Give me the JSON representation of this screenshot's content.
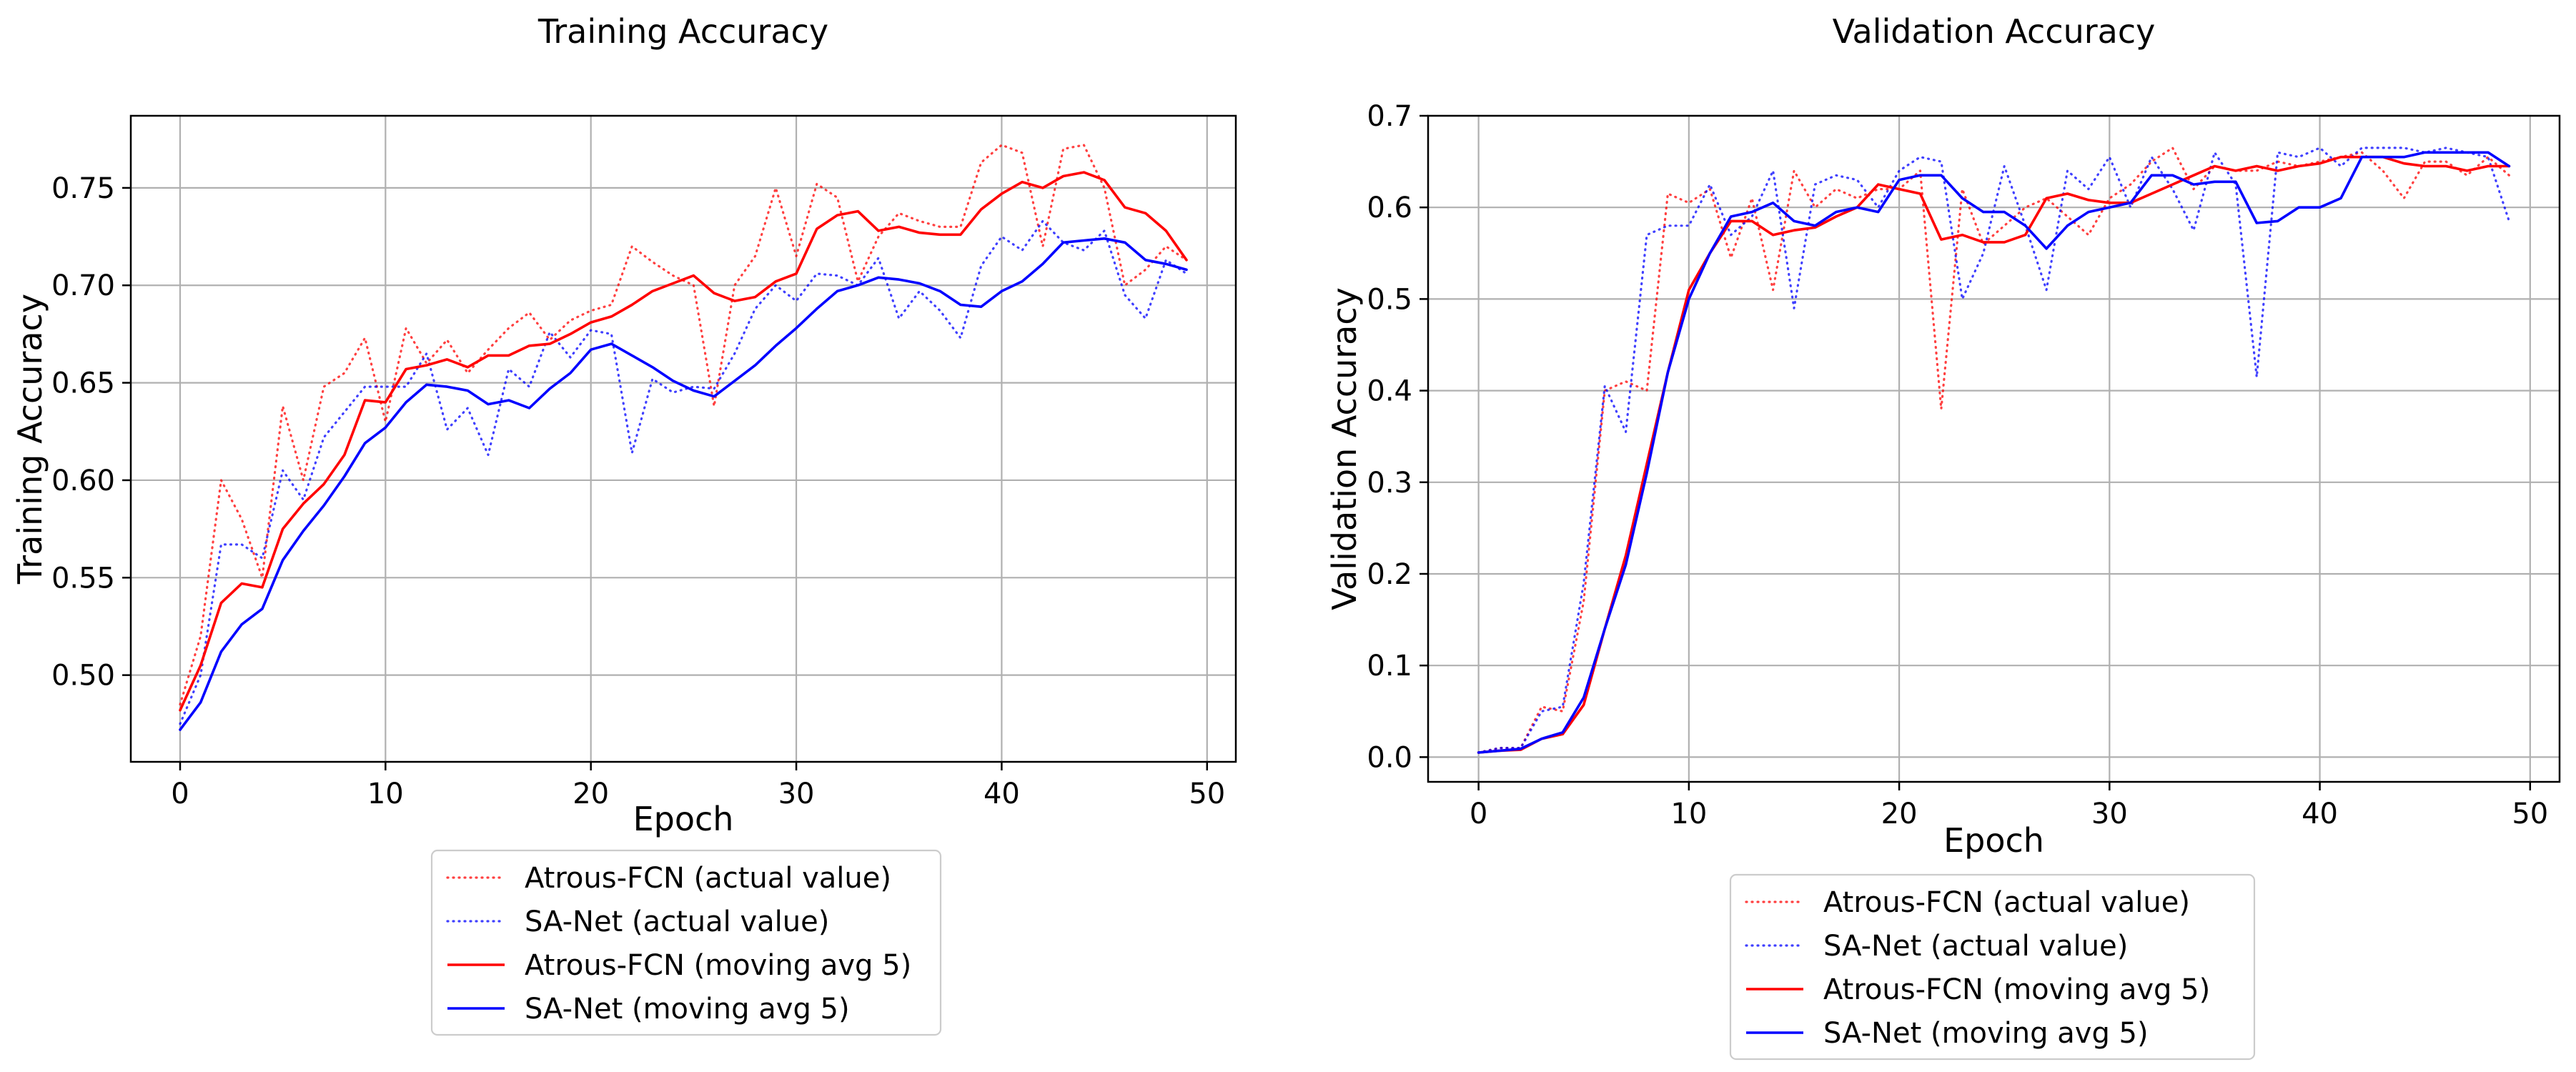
{
  "chart_data": [
    {
      "type": "line",
      "title": "Training Accuracy",
      "xlabel": "Epoch",
      "ylabel": "Training Accuracy",
      "xlim": [
        -2.4,
        51.4
      ],
      "ylim": [
        0.4555,
        0.787
      ],
      "xticks": [
        0,
        10,
        20,
        30,
        40,
        50
      ],
      "xtick_labels": [
        "0",
        "10",
        "20",
        "30",
        "40",
        "50"
      ],
      "yticks": [
        0.5,
        0.55,
        0.6,
        0.65,
        0.7,
        0.75
      ],
      "ytick_labels": [
        "0.50",
        "0.55",
        "0.60",
        "0.65",
        "0.70",
        "0.75"
      ],
      "grid": true,
      "legend_position": "below",
      "colors": {
        "atrous": "#ff0000",
        "sanet": "#0000ff"
      },
      "x": [
        0,
        1,
        2,
        3,
        4,
        5,
        6,
        7,
        8,
        9,
        10,
        11,
        12,
        13,
        14,
        15,
        16,
        17,
        18,
        19,
        20,
        21,
        22,
        23,
        24,
        25,
        26,
        27,
        28,
        29,
        30,
        31,
        32,
        33,
        34,
        35,
        36,
        37,
        38,
        39,
        40,
        41,
        42,
        43,
        44,
        45,
        46,
        47,
        48,
        49
      ],
      "series": [
        {
          "name": "Atrous-FCN (actual value)",
          "style": "dotted",
          "color": "#ff0000",
          "values": [
            0.485,
            0.52,
            0.6,
            0.58,
            0.55,
            0.638,
            0.6,
            0.648,
            0.655,
            0.673,
            0.63,
            0.678,
            0.66,
            0.672,
            0.655,
            0.667,
            0.678,
            0.686,
            0.672,
            0.682,
            0.687,
            0.69,
            0.72,
            0.712,
            0.705,
            0.7,
            0.638,
            0.7,
            0.715,
            0.75,
            0.715,
            0.752,
            0.745,
            0.702,
            0.725,
            0.737,
            0.733,
            0.73,
            0.73,
            0.763,
            0.772,
            0.768,
            0.72,
            0.77,
            0.772,
            0.75,
            0.7,
            0.708,
            0.72,
            0.713
          ]
        },
        {
          "name": "SA-Net (actual value)",
          "style": "dotted",
          "color": "#0000ff",
          "values": [
            0.475,
            0.5,
            0.567,
            0.567,
            0.56,
            0.605,
            0.59,
            0.622,
            0.635,
            0.648,
            0.648,
            0.648,
            0.665,
            0.626,
            0.637,
            0.613,
            0.657,
            0.648,
            0.676,
            0.663,
            0.677,
            0.675,
            0.614,
            0.652,
            0.645,
            0.648,
            0.647,
            0.665,
            0.688,
            0.7,
            0.692,
            0.706,
            0.705,
            0.7,
            0.714,
            0.683,
            0.697,
            0.687,
            0.673,
            0.71,
            0.725,
            0.718,
            0.733,
            0.722,
            0.718,
            0.728,
            0.695,
            0.683,
            0.713,
            0.706
          ]
        },
        {
          "name": "Atrous-FCN (moving avg 5)",
          "style": "solid",
          "color": "#ff0000",
          "values": [
            0.482,
            0.505,
            0.537,
            0.547,
            0.545,
            0.575,
            0.588,
            0.598,
            0.613,
            0.641,
            0.64,
            0.657,
            0.659,
            0.662,
            0.658,
            0.664,
            0.664,
            0.669,
            0.67,
            0.675,
            0.681,
            0.684,
            0.69,
            0.697,
            0.701,
            0.705,
            0.696,
            0.692,
            0.694,
            0.702,
            0.706,
            0.729,
            0.736,
            0.738,
            0.728,
            0.73,
            0.727,
            0.726,
            0.726,
            0.739,
            0.747,
            0.753,
            0.75,
            0.756,
            0.758,
            0.754,
            0.74,
            0.737,
            0.728,
            0.713
          ]
        },
        {
          "name": "SA-Net (moving avg 5)",
          "style": "solid",
          "color": "#0000ff",
          "values": [
            0.472,
            0.486,
            0.512,
            0.526,
            0.534,
            0.559,
            0.574,
            0.587,
            0.602,
            0.619,
            0.627,
            0.64,
            0.649,
            0.648,
            0.646,
            0.639,
            0.641,
            0.637,
            0.647,
            0.655,
            0.667,
            0.67,
            0.664,
            0.658,
            0.651,
            0.646,
            0.643,
            0.651,
            0.659,
            0.669,
            0.678,
            0.688,
            0.697,
            0.7,
            0.704,
            0.703,
            0.701,
            0.697,
            0.69,
            0.689,
            0.697,
            0.702,
            0.711,
            0.722,
            0.723,
            0.724,
            0.722,
            0.713,
            0.711,
            0.708
          ]
        }
      ]
    },
    {
      "type": "line",
      "title": "Validation Accuracy",
      "xlabel": "Epoch",
      "ylabel": "Validation Accuracy",
      "xlim": [
        -2.4,
        51.4
      ],
      "ylim": [
        -0.027,
        0.7
      ],
      "xticks": [
        0,
        10,
        20,
        30,
        40,
        50
      ],
      "xtick_labels": [
        "0",
        "10",
        "20",
        "30",
        "40",
        "50"
      ],
      "yticks": [
        0.0,
        0.1,
        0.2,
        0.3,
        0.4,
        0.5,
        0.6,
        0.7
      ],
      "ytick_labels": [
        "0.0",
        "0.1",
        "0.2",
        "0.3",
        "0.4",
        "0.5",
        "0.6",
        "0.7"
      ],
      "grid": true,
      "legend_position": "below",
      "colors": {
        "atrous": "#ff0000",
        "sanet": "#0000ff"
      },
      "x": [
        0,
        1,
        2,
        3,
        4,
        5,
        6,
        7,
        8,
        9,
        10,
        11,
        12,
        13,
        14,
        15,
        16,
        17,
        18,
        19,
        20,
        21,
        22,
        23,
        24,
        25,
        26,
        27,
        28,
        29,
        30,
        31,
        32,
        33,
        34,
        35,
        36,
        37,
        38,
        39,
        40,
        41,
        42,
        43,
        44,
        45,
        46,
        47,
        48,
        49
      ],
      "series": [
        {
          "name": "Atrous-FCN (actual value)",
          "style": "dotted",
          "color": "#ff0000",
          "values": [
            0.005,
            0.01,
            0.01,
            0.055,
            0.05,
            0.17,
            0.4,
            0.41,
            0.4,
            0.615,
            0.605,
            0.62,
            0.545,
            0.61,
            0.51,
            0.64,
            0.6,
            0.62,
            0.61,
            0.62,
            0.62,
            0.64,
            0.38,
            0.62,
            0.56,
            0.58,
            0.6,
            0.61,
            0.59,
            0.57,
            0.61,
            0.625,
            0.65,
            0.665,
            0.62,
            0.645,
            0.64,
            0.64,
            0.65,
            0.645,
            0.65,
            0.655,
            0.66,
            0.64,
            0.61,
            0.65,
            0.65,
            0.635,
            0.655,
            0.635
          ]
        },
        {
          "name": "SA-Net (actual value)",
          "style": "dotted",
          "color": "#0000ff",
          "values": [
            0.005,
            0.01,
            0.01,
            0.05,
            0.055,
            0.19,
            0.405,
            0.355,
            0.57,
            0.58,
            0.58,
            0.625,
            0.57,
            0.59,
            0.64,
            0.49,
            0.625,
            0.635,
            0.63,
            0.6,
            0.64,
            0.655,
            0.65,
            0.5,
            0.55,
            0.645,
            0.58,
            0.51,
            0.64,
            0.62,
            0.655,
            0.6,
            0.655,
            0.62,
            0.575,
            0.66,
            0.625,
            0.415,
            0.66,
            0.655,
            0.665,
            0.645,
            0.665,
            0.665,
            0.665,
            0.66,
            0.665,
            0.66,
            0.655,
            0.585
          ]
        },
        {
          "name": "Atrous-FCN (moving avg 5)",
          "style": "solid",
          "color": "#ff0000",
          "values": [
            0.005,
            0.007,
            0.008,
            0.02,
            0.025,
            0.057,
            0.14,
            0.22,
            0.32,
            0.42,
            0.51,
            0.55,
            0.585,
            0.585,
            0.57,
            0.575,
            0.578,
            0.59,
            0.6,
            0.625,
            0.62,
            0.615,
            0.565,
            0.57,
            0.562,
            0.562,
            0.57,
            0.61,
            0.615,
            0.608,
            0.605,
            0.605,
            0.615,
            0.625,
            0.635,
            0.645,
            0.64,
            0.645,
            0.64,
            0.645,
            0.648,
            0.655,
            0.655,
            0.655,
            0.648,
            0.645,
            0.645,
            0.64,
            0.645,
            0.645
          ]
        },
        {
          "name": "SA-Net (moving avg 5)",
          "style": "solid",
          "color": "#0000ff",
          "values": [
            0.005,
            0.007,
            0.009,
            0.02,
            0.027,
            0.065,
            0.14,
            0.21,
            0.31,
            0.42,
            0.5,
            0.55,
            0.59,
            0.595,
            0.605,
            0.585,
            0.58,
            0.595,
            0.6,
            0.595,
            0.63,
            0.635,
            0.635,
            0.61,
            0.595,
            0.595,
            0.58,
            0.555,
            0.58,
            0.595,
            0.6,
            0.605,
            0.635,
            0.635,
            0.625,
            0.628,
            0.628,
            0.583,
            0.585,
            0.6,
            0.6,
            0.61,
            0.655,
            0.655,
            0.655,
            0.66,
            0.66,
            0.66,
            0.66,
            0.645
          ]
        }
      ]
    }
  ]
}
